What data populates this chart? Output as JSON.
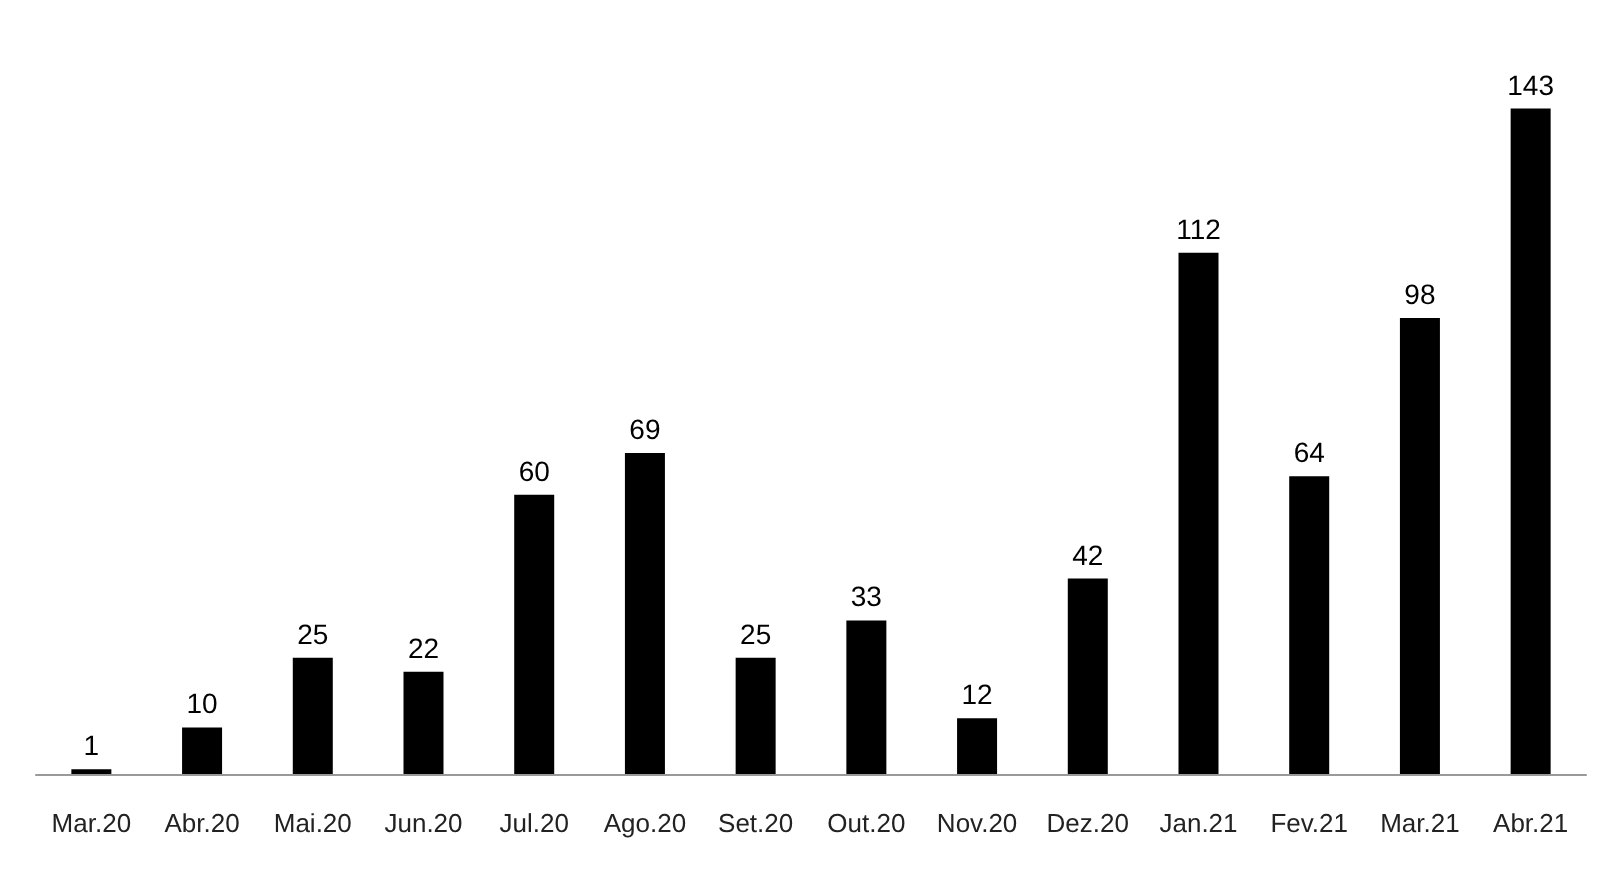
{
  "chart_data": {
    "type": "bar",
    "categories": [
      "Mar.20",
      "Abr.20",
      "Mai.20",
      "Jun.20",
      "Jul.20",
      "Ago.20",
      "Set.20",
      "Out.20",
      "Nov.20",
      "Dez.20",
      "Jan.21",
      "Fev.21",
      "Mar.21",
      "Abr.21"
    ],
    "values": [
      1,
      10,
      25,
      22,
      60,
      69,
      25,
      33,
      12,
      42,
      112,
      64,
      98,
      143
    ],
    "color": "#000000",
    "data_labels": true
  }
}
